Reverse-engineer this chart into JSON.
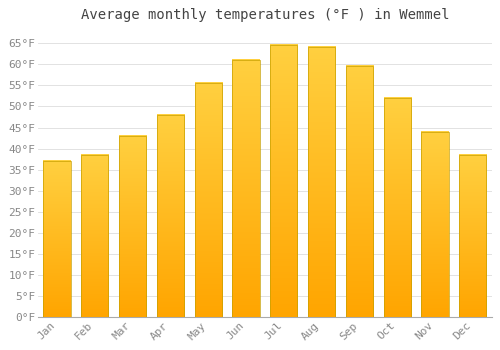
{
  "title": "Average monthly temperatures (°F ) in Wemmel",
  "months": [
    "Jan",
    "Feb",
    "Mar",
    "Apr",
    "May",
    "Jun",
    "Jul",
    "Aug",
    "Sep",
    "Oct",
    "Nov",
    "Dec"
  ],
  "values": [
    37,
    38.5,
    43,
    48,
    55.5,
    61,
    64.5,
    64,
    59.5,
    52,
    44,
    38.5
  ],
  "bar_color_top": "#FFD040",
  "bar_color_bottom": "#FFA500",
  "bar_edge_color": "#C8A000",
  "background_color": "#FFFFFF",
  "grid_color": "#DDDDDD",
  "ylim": [
    0,
    68
  ],
  "yticks": [
    0,
    5,
    10,
    15,
    20,
    25,
    30,
    35,
    40,
    45,
    50,
    55,
    60,
    65
  ],
  "title_fontsize": 10,
  "tick_fontsize": 8,
  "font_color": "#888888",
  "title_color": "#444444"
}
